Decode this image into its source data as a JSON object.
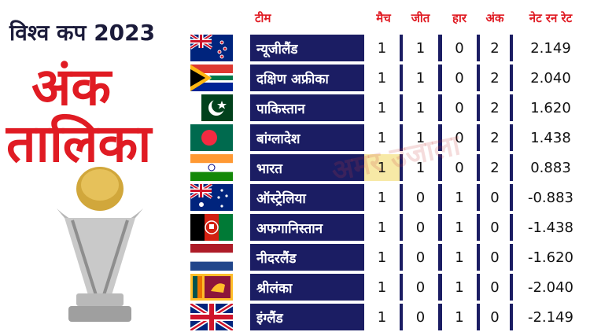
{
  "headline": "विश्व कप 2023",
  "title_line1": "अंक",
  "title_line2": "तालिका",
  "headers": {
    "team": "टीम",
    "matches": "मैच",
    "won": "जीत",
    "lost": "हार",
    "points": "अंक",
    "nrr": "नेट रन रेट"
  },
  "rows": [
    {
      "team": "न्यूजीलैंड",
      "m": "1",
      "w": "1",
      "l": "0",
      "p": "2",
      "nrr": "2.149",
      "flag": "new-zealand"
    },
    {
      "team": "दक्षिण अफ्रीका",
      "m": "1",
      "w": "1",
      "l": "0",
      "p": "2",
      "nrr": "2.040",
      "flag": "south-africa"
    },
    {
      "team": "पाकिस्तान",
      "m": "1",
      "w": "1",
      "l": "0",
      "p": "2",
      "nrr": "1.620",
      "flag": "pakistan"
    },
    {
      "team": "बांग्लादेश",
      "m": "1",
      "w": "1",
      "l": "0",
      "p": "2",
      "nrr": "1.438",
      "flag": "bangladesh"
    },
    {
      "team": "भारत",
      "m": "1",
      "w": "1",
      "l": "0",
      "p": "2",
      "nrr": "0.883",
      "flag": "india"
    },
    {
      "team": "ऑस्ट्रेलिया",
      "m": "1",
      "w": "0",
      "l": "1",
      "p": "0",
      "nrr": "-0.883",
      "flag": "australia"
    },
    {
      "team": "अफगानिस्तान",
      "m": "1",
      "w": "0",
      "l": "1",
      "p": "0",
      "nrr": "-1.438",
      "flag": "afghanistan"
    },
    {
      "team": "नीदरलैंड",
      "m": "1",
      "w": "0",
      "l": "1",
      "p": "0",
      "nrr": "-1.620",
      "flag": "netherlands"
    },
    {
      "team": "श्रीलंका",
      "m": "1",
      "w": "0",
      "l": "1",
      "p": "0",
      "nrr": "-2.040",
      "flag": "sri-lanka"
    },
    {
      "team": "इंग्लैंड",
      "m": "1",
      "w": "0",
      "l": "1",
      "p": "0",
      "nrr": "-2.149",
      "flag": "england"
    }
  ],
  "watermark": "अमर उजाला",
  "colors": {
    "accent": "#e01b23",
    "band": "#1b1d63"
  }
}
